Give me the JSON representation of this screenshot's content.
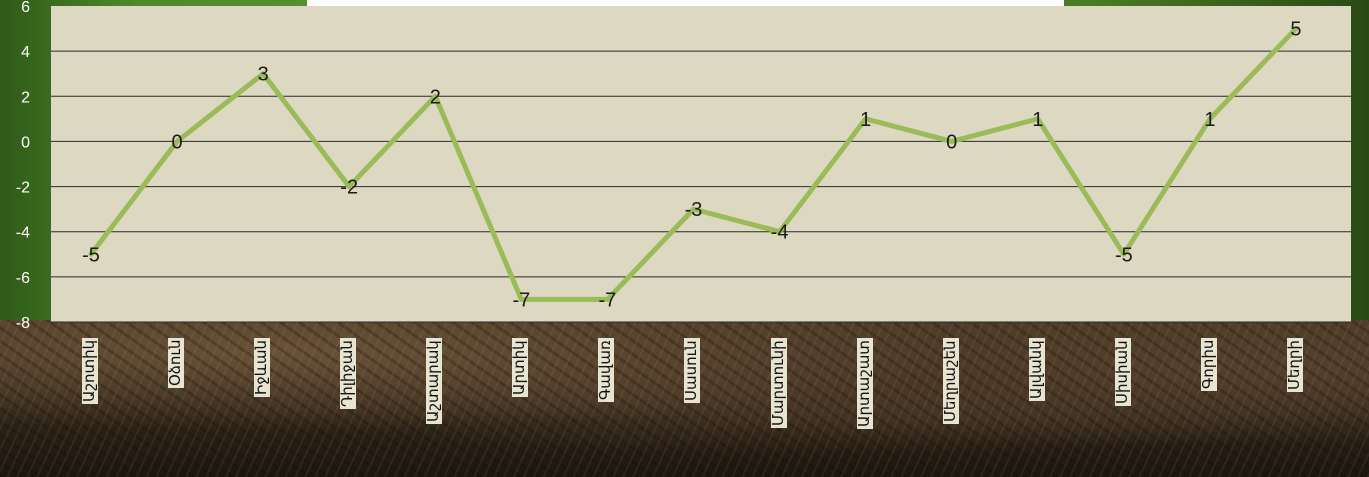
{
  "chart_data": {
    "type": "line",
    "categories": [
      "Աշոտիկ",
      "Օձուն",
      "Իջևան",
      "Դիլիջան",
      "Աշտարակ",
      "Արտիկ",
      "Գավառ",
      "Սասուն",
      "Մարտունի",
      "Արտաշատ",
      "Մեղրաշեն",
      "Ալվանկ",
      "Սիսիան",
      "Գորիս",
      "Մեղրի"
    ],
    "values": [
      -5,
      0,
      3,
      -2,
      2,
      -7,
      -7,
      -3,
      -4,
      1,
      0,
      1,
      -5,
      1,
      5
    ],
    "ylim": [
      -8,
      6
    ],
    "yticks": [
      -8,
      -6,
      -4,
      -2,
      0,
      2,
      4,
      6
    ],
    "grid": true,
    "legend": "none",
    "title": "",
    "xlabel": "",
    "ylabel": "",
    "colors": {
      "line": "#9bbb59",
      "plot_bg": "#ddd8c2",
      "grid": "#2a2a2a"
    }
  }
}
